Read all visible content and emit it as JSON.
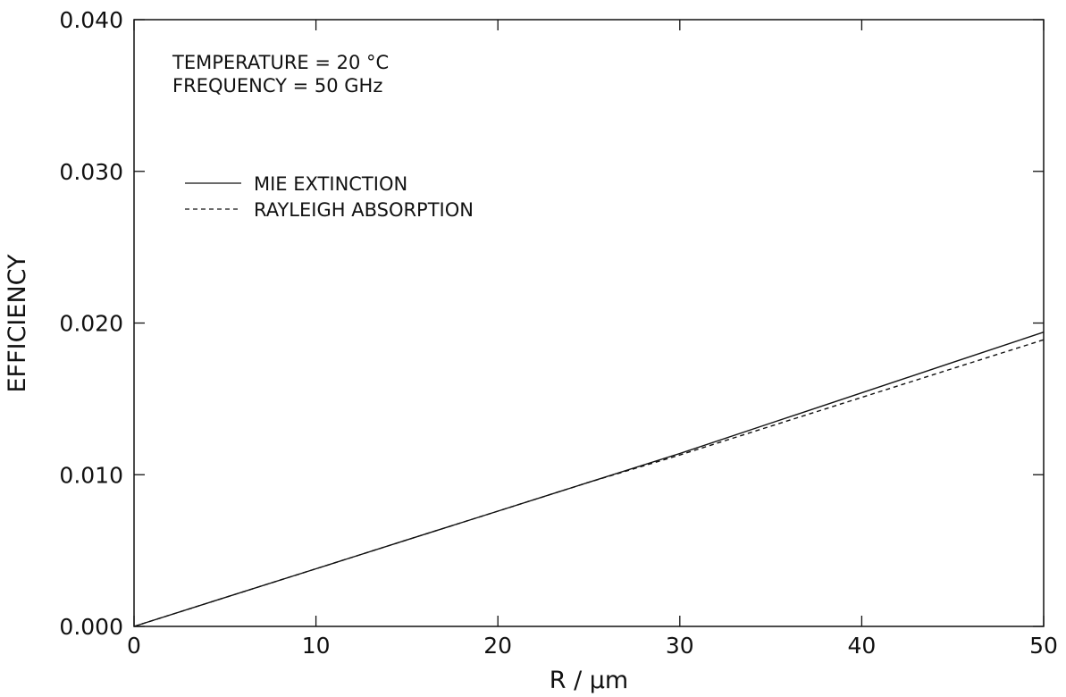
{
  "chart_data": {
    "type": "line",
    "title": "",
    "xlabel": "R / μm",
    "ylabel": "EFFICIENCY",
    "xlim": [
      0,
      50
    ],
    "ylim": [
      0.0,
      0.04
    ],
    "x_ticks": [
      0,
      10,
      20,
      30,
      40,
      50
    ],
    "x_tick_labels": [
      "0",
      "10",
      "20",
      "30",
      "40",
      "50"
    ],
    "y_ticks": [
      0.0,
      0.01,
      0.02,
      0.03,
      0.04
    ],
    "y_tick_labels": [
      "0.000",
      "0.010",
      "0.020",
      "0.030",
      "0.040"
    ],
    "grid": false,
    "legend_position": "upper-left",
    "annotations": [
      "TEMPERATURE = 20 °C",
      "FREQUENCY = 50 GHz"
    ],
    "series": [
      {
        "name": "MIE EXTINCTION",
        "style": "solid",
        "color": "#111111",
        "x": [
          0,
          5,
          10,
          15,
          20,
          25,
          30,
          35,
          40,
          45,
          50
        ],
        "y": [
          0.0,
          0.0019,
          0.0038,
          0.0057,
          0.0076,
          0.0095,
          0.0114,
          0.0134,
          0.0154,
          0.0174,
          0.0194
        ]
      },
      {
        "name": "RAYLEIGH ABSORPTION",
        "style": "dashed",
        "color": "#111111",
        "x": [
          0,
          5,
          10,
          15,
          20,
          25,
          30,
          35,
          40,
          45,
          50
        ],
        "y": [
          0.0,
          0.0019,
          0.0038,
          0.0057,
          0.0076,
          0.0095,
          0.0113,
          0.0132,
          0.0151,
          0.017,
          0.0189
        ]
      }
    ]
  }
}
